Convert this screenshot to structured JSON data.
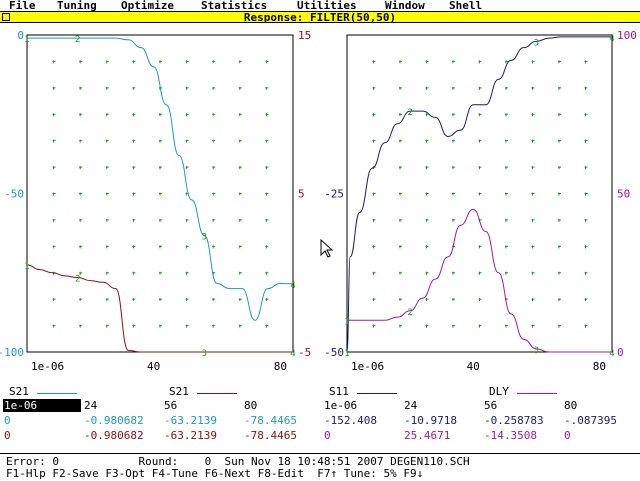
{
  "menu": [
    "File",
    "Tuning",
    "Optimize",
    "Statistics",
    "Utilities",
    "Window",
    "Shell"
  ],
  "window": {
    "title": "Response: FILTER(50,50)"
  },
  "colors": {
    "cyan": "#1e9bb6",
    "darkred": "#8c1010",
    "navy": "#1c1c6e",
    "magenta": "#a01aa0",
    "grid": "#1c9a1c"
  },
  "left_plot": {
    "left_axis": [
      "0",
      "-50",
      "-100"
    ],
    "right_axis": [
      "15",
      "5",
      "-5"
    ],
    "x_ticks": [
      "1e-06",
      "40",
      "80"
    ]
  },
  "right_plot": {
    "left_axis": [
      "-25",
      "-50"
    ],
    "right_axis": [
      "100",
      "50",
      "0"
    ],
    "x_ticks": [
      "1e-06",
      "40",
      "80"
    ]
  },
  "chart_data": [
    {
      "type": "line",
      "x": [
        0,
        4,
        8,
        12,
        16,
        20,
        24,
        28,
        32,
        36,
        40,
        44,
        48,
        52,
        56,
        60,
        64,
        68,
        72,
        76,
        80,
        84
      ],
      "xlim": [
        0,
        84
      ],
      "series": [
        {
          "name": "S21",
          "axis": "left",
          "ylim": [
            -100,
            0
          ],
          "values": [
            -0.98,
            -0.98,
            -0.98,
            -0.98,
            -0.98,
            -0.98,
            -0.98,
            -1.0,
            -1.5,
            -4,
            -10,
            -22,
            -38,
            -52,
            -63.2,
            -78.4,
            -80,
            -80,
            -90,
            -80,
            -78.4,
            -78.5
          ]
        },
        {
          "name": "S21",
          "axis": "right",
          "ylim": [
            -5,
            15
          ],
          "values": [
            0.5,
            0.2,
            0.0,
            -0.2,
            -0.3,
            -0.5,
            -0.6,
            -1.0,
            -4.9,
            -5,
            -5,
            -5,
            -5,
            -5,
            -5,
            -5,
            -5,
            -5,
            -5,
            -5,
            -5,
            -5
          ]
        }
      ]
    },
    {
      "type": "line",
      "x": [
        0,
        1,
        4,
        8,
        12,
        16,
        20,
        24,
        28,
        32,
        36,
        40,
        44,
        48,
        52,
        56,
        60,
        64,
        68,
        72,
        76,
        80,
        84
      ],
      "xlim": [
        0,
        84
      ],
      "series": [
        {
          "name": "S11",
          "axis": "left",
          "ylim": [
            -50,
            0
          ],
          "values": [
            -50,
            -35,
            -28,
            -21,
            -17,
            -14,
            -12,
            -12,
            -13,
            -16,
            -15,
            -11,
            -11,
            -7,
            -4,
            -2,
            -1,
            -0.5,
            -0.3,
            -0.3,
            -0.3,
            -0.3,
            -0.3
          ]
        },
        {
          "name": "DLY",
          "axis": "right",
          "ylim": [
            0,
            100
          ],
          "values": [
            10,
            10,
            10,
            10,
            10,
            11,
            13,
            17,
            23,
            30,
            40,
            45,
            38,
            25,
            12,
            4,
            1,
            0,
            0,
            0,
            0,
            0,
            0
          ]
        }
      ]
    }
  ],
  "legend": [
    {
      "label": "S21",
      "color": "#1e9bb6"
    },
    {
      "label": "S21",
      "color": "#8c1010"
    },
    {
      "label": "S11",
      "color": "#1c1c6e"
    },
    {
      "label": "DLY",
      "color": "#a01aa0"
    }
  ],
  "table": {
    "header": [
      "1e-06",
      "24",
      "56",
      "80",
      "1e-06",
      "24",
      "56",
      "80"
    ],
    "row1": [
      "0",
      "-0.980682",
      "-63.2139",
      "-78.4465",
      "-152.408",
      "-10.9718",
      "-0.258783",
      "-.087395"
    ],
    "row2": [
      "0",
      "-0.980682",
      "-63.2139",
      "-78.4465",
      "0",
      "25.4671",
      "-14.3508",
      "0"
    ]
  },
  "status": {
    "line1": "Error: 0            Round:    0  Sun Nov 18 10:48:51 2007 DEGEN110.SCH",
    "line2": "F1-Hlp F2-Save F3-Opt F4-Tune F6-Next F8-Edit  F7↑ Tune: 5% F9↓"
  }
}
